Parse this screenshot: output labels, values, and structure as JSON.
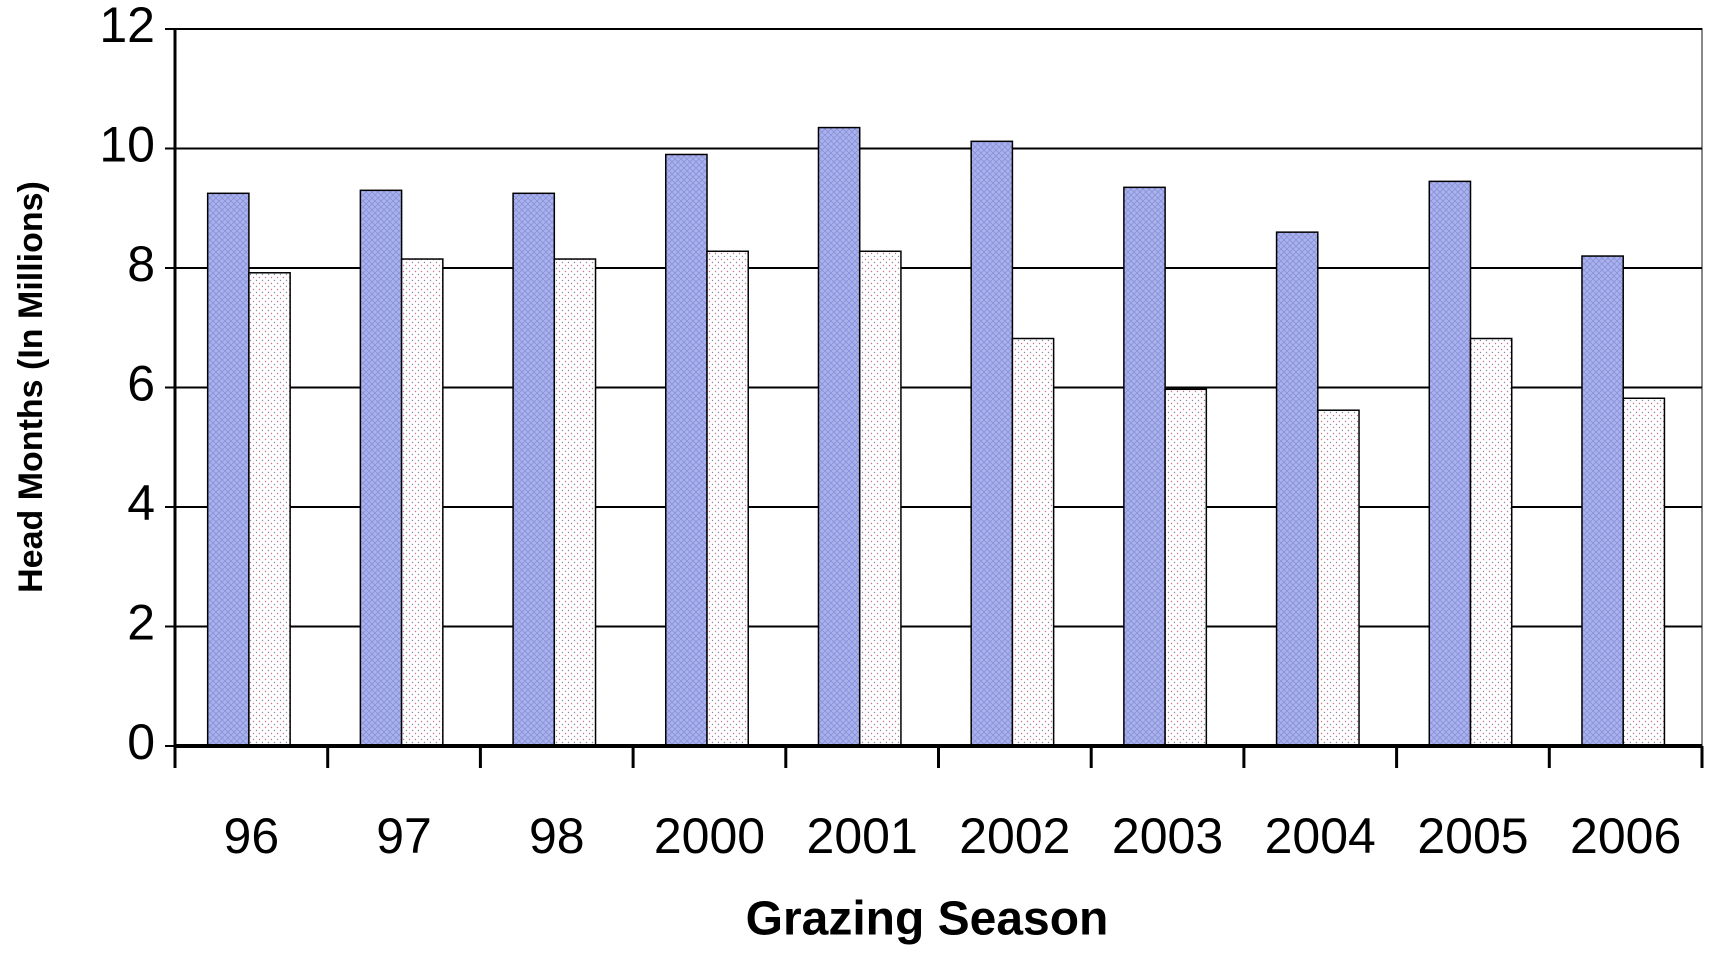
{
  "chart_data": {
    "type": "bar",
    "x_label": "Grazing Season",
    "y_label": "Head Months (In Millions)",
    "categories": [
      "96",
      "97",
      "98",
      "2000",
      "2001",
      "2002",
      "2003",
      "2004",
      "2005",
      "2006"
    ],
    "series": [
      {
        "color": "#aab2ee",
        "values": [
          9.25,
          9.3,
          9.25,
          9.9,
          10.35,
          10.12,
          9.35,
          8.6,
          9.45,
          8.2
        ]
      },
      {
        "color": "#ffffff",
        "values": [
          7.92,
          8.15,
          8.15,
          8.28,
          8.28,
          6.82,
          5.97,
          5.62,
          6.82,
          5.82
        ]
      }
    ],
    "ylim": [
      0,
      12
    ],
    "yticks": [
      0,
      2,
      4,
      6,
      8,
      10,
      12
    ],
    "grid": true
  }
}
